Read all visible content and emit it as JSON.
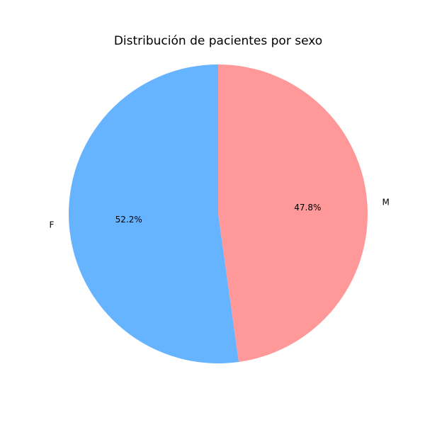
{
  "chart_data": {
    "type": "pie",
    "title": "Distribución de pacientes por sexo",
    "categories": [
      "F",
      "M"
    ],
    "values": [
      52.2,
      47.8
    ],
    "percent_labels": [
      "52.2%",
      "47.8%"
    ],
    "colors": [
      "#66b3ff",
      "#ff9999"
    ],
    "start_angle_deg": 90,
    "direction": "counterclockwise"
  }
}
